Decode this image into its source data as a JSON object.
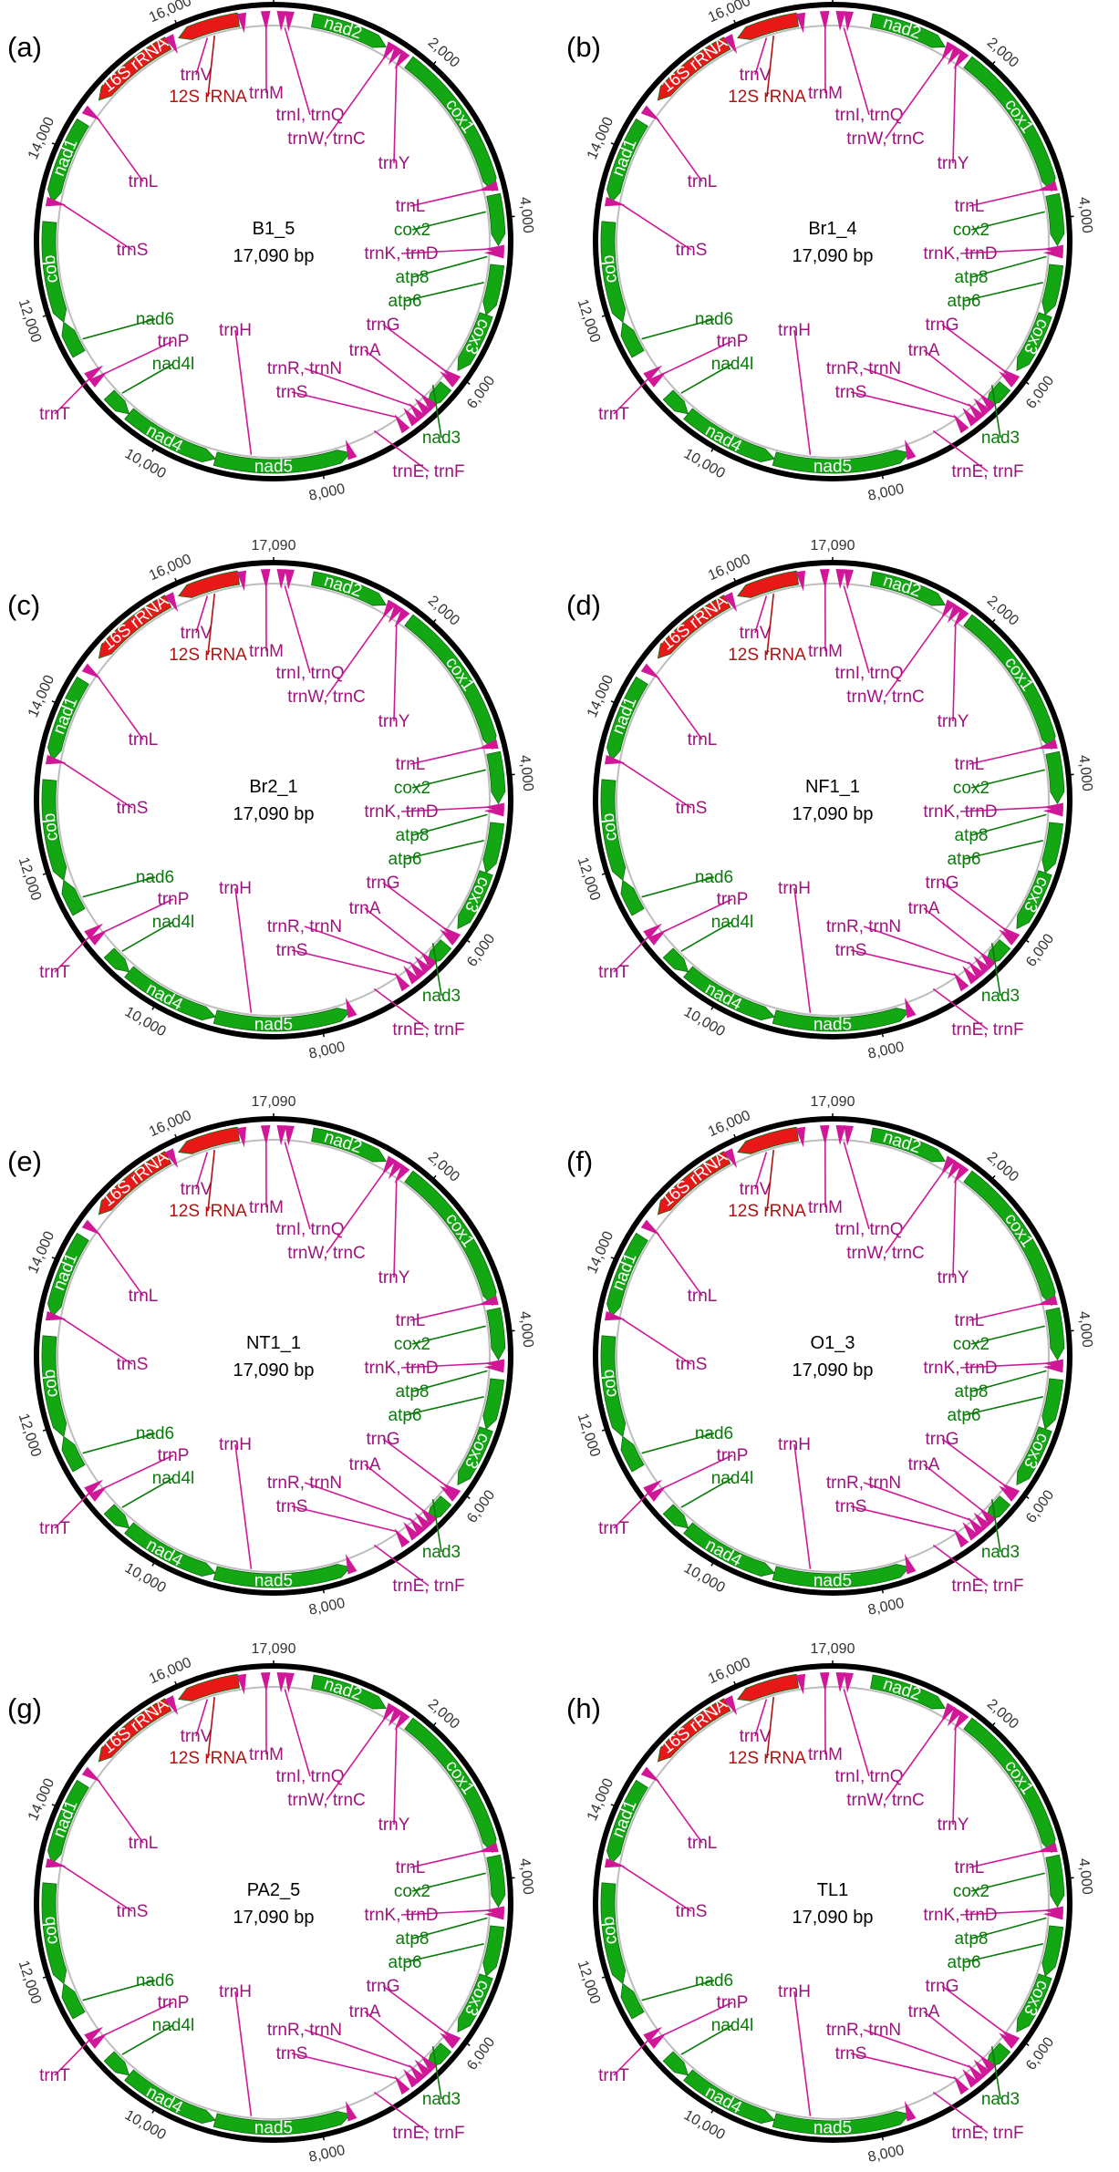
{
  "colors": {
    "protein": "#13a813",
    "rrna": "#e81818",
    "trna": "#d01797",
    "trna_label": "#a0137f",
    "protein_label": "#0a7a0a",
    "rrna_label": "#b11212",
    "ring": "#000000",
    "inner_ring": "#bdbdbd"
  },
  "genome_length": 17090,
  "ticks": [
    "17,090",
    "2,000",
    "4,000",
    "6,000",
    "8,000",
    "10,000",
    "12,000",
    "14,000",
    "16,000"
  ],
  "block_labels": {
    "nad2": "nad2",
    "cox1": "cox1",
    "cox3": "cox3",
    "nad5": "nad5",
    "nad4": "nad4",
    "cob": "cob",
    "nad1": "nad1",
    "rrna16": "16S rRNA"
  },
  "labels": {
    "trnV": "trnV",
    "rrna12": "12S rRNA",
    "trnM": "trnM",
    "trnIQ": "trnI, trnQ",
    "trnWC": "trnW, trnC",
    "trnY": "trnY",
    "trnL2": "trnL",
    "cox2": "cox2",
    "trnKD": "trnK, trnD",
    "atp8": "atp8",
    "atp6": "atp6",
    "trnG": "trnG",
    "trnA": "trnA",
    "trnRN": "trnR, trnN",
    "trnS2": "trnS",
    "nad3": "nad3",
    "trnEF": "trnE, trnF",
    "trnH": "trnH",
    "nad4l": "nad4l",
    "trnP": "trnP",
    "nad6": "nad6",
    "trnT": "trnT",
    "trnS1": "trnS",
    "trnL1": "trnL"
  },
  "panels": [
    {
      "id": "a",
      "label": "(a)",
      "sample": "B1_5",
      "length_label": "17,090 bp"
    },
    {
      "id": "b",
      "label": "(b)",
      "sample": "Br1_4",
      "length_label": "17,090 bp"
    },
    {
      "id": "c",
      "label": "(c)",
      "sample": "Br2_1",
      "length_label": "17,090 bp"
    },
    {
      "id": "d",
      "label": "(d)",
      "sample": "NF1_1",
      "length_label": "17,090 bp"
    },
    {
      "id": "e",
      "label": "(e)",
      "sample": "NT1_1",
      "length_label": "17,090 bp"
    },
    {
      "id": "f",
      "label": "(f)",
      "sample": "O1_3",
      "length_label": "17,090 bp"
    },
    {
      "id": "g",
      "label": "(g)",
      "sample": "PA2_5",
      "length_label": "17,090 bp"
    },
    {
      "id": "h",
      "label": "(h)",
      "sample": "TL1",
      "length_label": "17,090 bp"
    }
  ]
}
